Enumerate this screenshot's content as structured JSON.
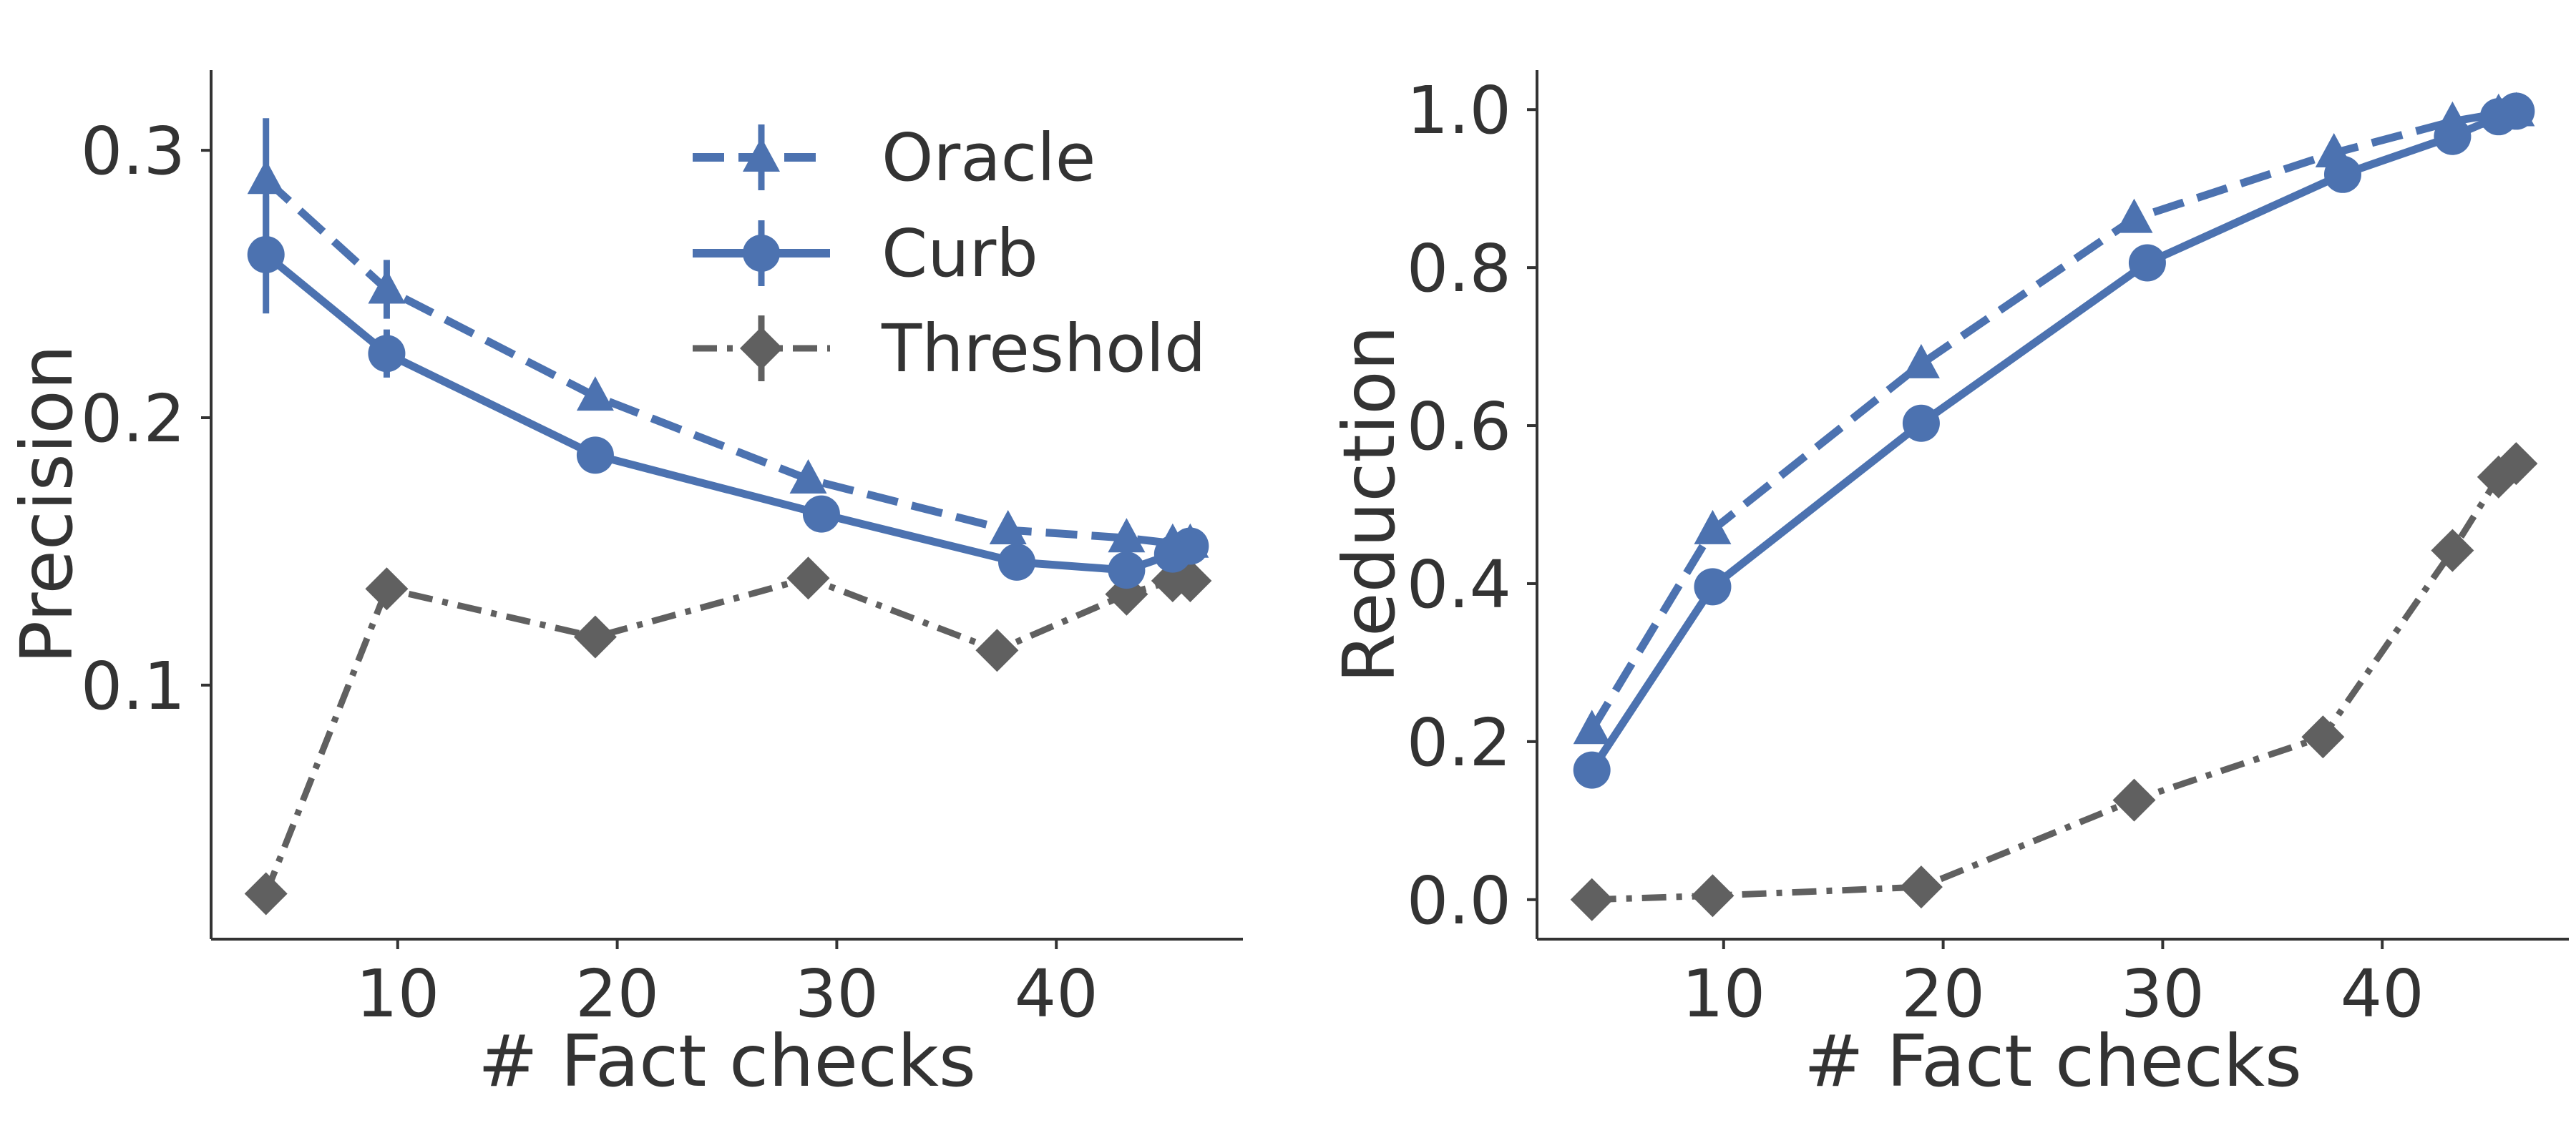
{
  "chart_data": [
    {
      "type": "line",
      "xlabel": "# Fact checks",
      "ylabel": "Precision",
      "xlim": [
        1.5,
        48.5
      ],
      "ylim": [
        0.005,
        0.33
      ],
      "xticks": [
        "10",
        "20",
        "30",
        "40"
      ],
      "yticks": [
        "0.1",
        "0.2",
        "0.3"
      ],
      "legend_position": "top-right",
      "series": [
        {
          "name": "Oracle",
          "style": "dashed",
          "marker": "triangle",
          "color": "#4c72b0",
          "x": [
            4,
            9.5,
            19,
            28.7,
            37.8,
            43.2,
            45.3,
            46.1
          ],
          "y": [
            0.289,
            0.248,
            0.208,
            0.177,
            0.158,
            0.155,
            0.153,
            0.153
          ],
          "err": [
            0.023,
            0.011,
            0,
            0,
            0,
            0,
            0,
            0
          ]
        },
        {
          "name": "Curb",
          "style": "solid",
          "marker": "circle",
          "color": "#4c72b0",
          "x": [
            4,
            9.5,
            19,
            29.3,
            38.2,
            43.2,
            45.3,
            46.1
          ],
          "y": [
            0.261,
            0.224,
            0.186,
            0.164,
            0.146,
            0.143,
            0.149,
            0.152
          ],
          "err": [
            0.022,
            0.009,
            0,
            0,
            0,
            0,
            0,
            0
          ]
        },
        {
          "name": "Threshold",
          "style": "dashdot",
          "marker": "diamond",
          "color": "#606060",
          "x": [
            4,
            9.5,
            19,
            28.7,
            37.3,
            43.2,
            45.3,
            46.1
          ],
          "y": [
            0.022,
            0.136,
            0.118,
            0.14,
            0.113,
            0.134,
            0.139,
            0.139
          ],
          "err": [
            0,
            0,
            0,
            0,
            0,
            0,
            0,
            0
          ]
        }
      ]
    },
    {
      "type": "line",
      "xlabel": "# Fact checks",
      "ylabel": "Reduction",
      "xlim": [
        1.5,
        48.5
      ],
      "ylim": [
        -0.05,
        1.05
      ],
      "xticks": [
        "10",
        "20",
        "30",
        "40"
      ],
      "yticks": [
        "0.0",
        "0.2",
        "0.4",
        "0.6",
        "0.8",
        "1.0"
      ],
      "series": [
        {
          "name": "Oracle",
          "style": "dashed",
          "marker": "triangle",
          "color": "#4c72b0",
          "x": [
            4,
            9.5,
            19,
            28.7,
            37.8,
            43.2,
            45.3,
            46.1
          ],
          "y": [
            0.215,
            0.468,
            0.678,
            0.862,
            0.945,
            0.985,
            0.995,
            0.997
          ]
        },
        {
          "name": "Curb",
          "style": "solid",
          "marker": "circle",
          "color": "#4c72b0",
          "x": [
            4,
            9.5,
            19,
            29.3,
            38.2,
            43.2,
            45.3,
            46.1
          ],
          "y": [
            0.164,
            0.396,
            0.603,
            0.806,
            0.918,
            0.966,
            0.991,
            0.998
          ]
        },
        {
          "name": "Threshold",
          "style": "dashdot",
          "marker": "diamond",
          "color": "#606060",
          "x": [
            4,
            9.5,
            19,
            28.7,
            37.3,
            43.2,
            45.3,
            46.1
          ],
          "y": [
            0.0,
            0.005,
            0.016,
            0.126,
            0.206,
            0.442,
            0.535,
            0.552
          ]
        }
      ]
    }
  ],
  "legend": [
    {
      "label": "Oracle"
    },
    {
      "label": "Curb"
    },
    {
      "label": "Threshold"
    }
  ]
}
